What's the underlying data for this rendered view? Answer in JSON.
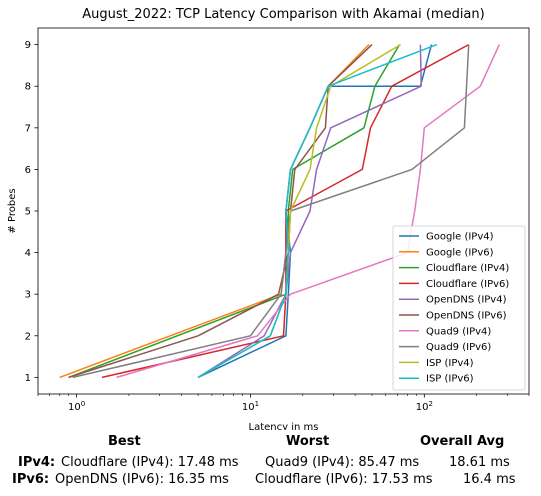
{
  "chart_data": {
    "type": "line",
    "title": "August_2022: TCP Latency Comparison with Akamai (median)",
    "xlabel": "Latency in ms",
    "ylabel": "# Probes",
    "xscale": "log",
    "xlim": [
      0.6,
      400
    ],
    "ylim": [
      0.6,
      9.4
    ],
    "x_ticks": [
      {
        "value": 1,
        "base": "10",
        "exp": "0"
      },
      {
        "value": 10,
        "base": "10",
        "exp": "1"
      },
      {
        "value": 100,
        "base": "10",
        "exp": "2"
      }
    ],
    "y_ticks": [
      "1",
      "2",
      "3",
      "4",
      "5",
      "6",
      "7",
      "8",
      "9"
    ],
    "legend_position": "lower-right",
    "series": [
      {
        "name": "Google (IPv4)",
        "color": "#1f77b4",
        "points": [
          [
            5.0,
            1
          ],
          [
            16.0,
            2
          ],
          [
            16.5,
            3
          ],
          [
            17.0,
            4
          ],
          [
            16.0,
            5
          ],
          [
            17.0,
            6
          ],
          [
            22.0,
            7
          ],
          [
            28.0,
            8
          ],
          [
            95.0,
            8
          ],
          [
            110.0,
            9
          ]
        ]
      },
      {
        "name": "Google (IPv6)",
        "color": "#ff7f0e",
        "points": [
          [
            0.8,
            1
          ],
          [
            15.0,
            3
          ],
          [
            16.0,
            4
          ],
          [
            16.0,
            5
          ],
          [
            17.0,
            6
          ],
          [
            22.0,
            7
          ],
          [
            28.0,
            8
          ],
          [
            48.0,
            9
          ]
        ]
      },
      {
        "name": "Cloudflare (IPv4)",
        "color": "#2ca02c",
        "points": [
          [
            0.9,
            1
          ],
          [
            16.0,
            3
          ],
          [
            16.5,
            4
          ],
          [
            16.5,
            5
          ],
          [
            17.5,
            6
          ],
          [
            45.0,
            7
          ],
          [
            52.0,
            8
          ],
          [
            72.0,
            9
          ]
        ]
      },
      {
        "name": "Cloudflare (IPv6)",
        "color": "#d62728",
        "points": [
          [
            1.4,
            1
          ],
          [
            15.5,
            2
          ],
          [
            16.0,
            3
          ],
          [
            16.0,
            4
          ],
          [
            16.0,
            5
          ],
          [
            44.0,
            6
          ],
          [
            49.0,
            7
          ],
          [
            65.0,
            8
          ],
          [
            180.0,
            9
          ]
        ]
      },
      {
        "name": "OpenDNS (IPv4)",
        "color": "#9467bd",
        "points": [
          [
            5.0,
            1
          ],
          [
            12.0,
            2
          ],
          [
            16.0,
            3
          ],
          [
            17.0,
            4
          ],
          [
            22.0,
            5
          ],
          [
            24.0,
            6
          ],
          [
            29.0,
            7
          ],
          [
            96.0,
            8
          ],
          [
            95.0,
            9
          ]
        ]
      },
      {
        "name": "OpenDNS (IPv6)",
        "color": "#8c564b",
        "points": [
          [
            0.9,
            1
          ],
          [
            5.0,
            2
          ],
          [
            14.5,
            3
          ],
          [
            16.5,
            4
          ],
          [
            17.0,
            5
          ],
          [
            18.0,
            6
          ],
          [
            27.0,
            7
          ],
          [
            28.0,
            8
          ],
          [
            50.0,
            9
          ]
        ]
      },
      {
        "name": "Quad9 (IPv4)",
        "color": "#e377c2",
        "points": [
          [
            1.7,
            1
          ],
          [
            11.0,
            2
          ],
          [
            17.0,
            3
          ],
          [
            80.0,
            4
          ],
          [
            88.0,
            5
          ],
          [
            95.0,
            6
          ],
          [
            100.0,
            7
          ],
          [
            210.0,
            8
          ],
          [
            270.0,
            9
          ]
        ]
      },
      {
        "name": "Quad9 (IPv6)",
        "color": "#7f7f7f",
        "points": [
          [
            0.95,
            1
          ],
          [
            10.0,
            2
          ],
          [
            15.0,
            3
          ],
          [
            16.0,
            4
          ],
          [
            17.0,
            5
          ],
          [
            85.0,
            6
          ],
          [
            170.0,
            7
          ],
          [
            180.0,
            9
          ]
        ]
      },
      {
        "name": "ISP (IPv4)",
        "color": "#bcbd22",
        "points": [
          [
            5.0,
            1
          ],
          [
            13.0,
            2
          ],
          [
            16.0,
            3
          ],
          [
            16.5,
            4
          ],
          [
            17.0,
            5
          ],
          [
            22.0,
            6
          ],
          [
            24.0,
            7
          ],
          [
            29.0,
            8
          ],
          [
            73.0,
            9
          ]
        ]
      },
      {
        "name": "ISP (IPv6)",
        "color": "#17becf",
        "points": [
          [
            5.0,
            1
          ],
          [
            13.0,
            2
          ],
          [
            16.0,
            3
          ],
          [
            16.5,
            4
          ],
          [
            16.0,
            5
          ],
          [
            17.0,
            6
          ],
          [
            22.0,
            7
          ],
          [
            28.0,
            8
          ],
          [
            118.0,
            9
          ]
        ]
      }
    ]
  },
  "summary": {
    "headers": {
      "best": "Best",
      "worst": "Worst",
      "avg": "Overall Avg"
    },
    "rows": [
      {
        "label": "IPv4:",
        "best": "Cloudflare (IPv4): 17.48 ms",
        "worst": "Quad9 (IPv4): 85.47 ms",
        "avg": "18.61 ms"
      },
      {
        "label": "IPv6:",
        "best": "OpenDNS (IPv6): 16.35 ms",
        "worst": "Cloudflare (IPv6): 17.53 ms",
        "avg": "16.4 ms"
      }
    ]
  }
}
